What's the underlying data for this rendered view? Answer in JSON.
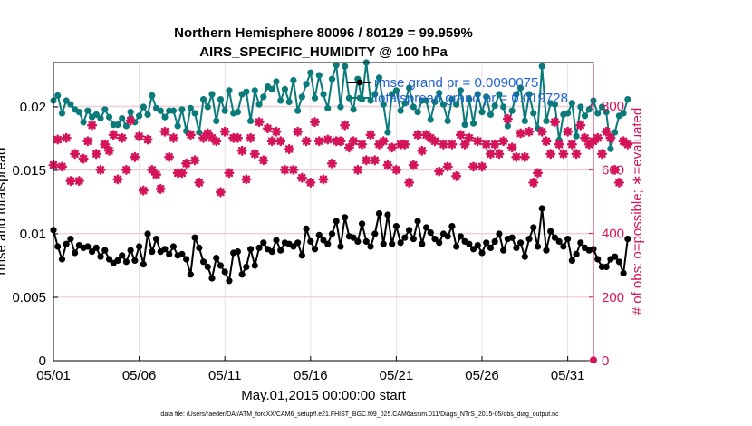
{
  "chart_data": {
    "type": "line",
    "title": "Northern Hemisphere 80096 / 80129 = 99.959%",
    "subtitle": "AIRS_SPECIFIC_HUMIDITY @ 100 hPa",
    "xlabel": "May.01,2015 00:00:00 start",
    "ylabel_left": "rmse and totalspread",
    "ylabel_right": "# of obs: o=possible; ∗=evaluated",
    "x_tick_labels": [
      "05/01",
      "05/06",
      "05/11",
      "05/16",
      "05/21",
      "05/26",
      "05/31"
    ],
    "x_tick_days": [
      0,
      5,
      10,
      15,
      20,
      25,
      30
    ],
    "xlim": [
      0,
      31.5
    ],
    "ylim_left": [
      0,
      0.0235
    ],
    "y_ticks_left": [
      0,
      0.005,
      0.01,
      0.015,
      0.02
    ],
    "y_tick_labels_left": [
      "0",
      "0.005",
      "0.01",
      "0.015",
      "0.02"
    ],
    "ylim_right": [
      0,
      937
    ],
    "y_ticks_right": [
      0,
      200,
      400,
      600,
      800
    ],
    "y_tick_labels_right": [
      "0",
      "200",
      "400",
      "600",
      "800"
    ],
    "step_days": 0.25,
    "series": [
      {
        "name": "rmse grand pr = 0.0090075",
        "color": "#000000",
        "axis": "left",
        "marker": "dot",
        "values": [
          0.0103,
          0.009,
          0.008,
          0.0092,
          0.0096,
          0.0085,
          0.0091,
          0.0089,
          0.009,
          0.0086,
          0.0089,
          0.0082,
          0.0087,
          0.008,
          0.0077,
          0.0079,
          0.0083,
          0.0078,
          0.0087,
          0.0079,
          0.009,
          0.0076,
          0.01,
          0.0086,
          0.0096,
          0.0086,
          0.0088,
          0.0084,
          0.009,
          0.0083,
          0.0084,
          0.008,
          0.0068,
          0.0097,
          0.0089,
          0.0078,
          0.0074,
          0.0065,
          0.0081,
          0.0075,
          0.007,
          0.0063,
          0.0085,
          0.0086,
          0.0068,
          0.0074,
          0.0088,
          0.0075,
          0.0089,
          0.0093,
          0.0088,
          0.0086,
          0.0095,
          0.0087,
          0.0093,
          0.0092,
          0.009,
          0.0093,
          0.0083,
          0.0104,
          0.0094,
          0.0088,
          0.0099,
          0.0095,
          0.0092,
          0.01,
          0.011,
          0.009,
          0.0113,
          0.0098,
          0.0097,
          0.0094,
          0.0108,
          0.0094,
          0.009,
          0.01,
          0.0116,
          0.0092,
          0.0115,
          0.0092,
          0.0106,
          0.0093,
          0.0097,
          0.0103,
          0.0096,
          0.011,
          0.0092,
          0.0105,
          0.0101,
          0.0096,
          0.0093,
          0.01,
          0.0098,
          0.0106,
          0.009,
          0.0098,
          0.0094,
          0.0092,
          0.0088,
          0.0091,
          0.0085,
          0.0093,
          0.0089,
          0.0094,
          0.01,
          0.0087,
          0.0096,
          0.0097,
          0.0089,
          0.0093,
          0.0082,
          0.0096,
          0.0105,
          0.009,
          0.012,
          0.0087,
          0.0102,
          0.0097,
          0.0094,
          0.009,
          0.0096,
          0.0079,
          0.0084,
          0.0093,
          0.0089,
          0.0087,
          0.0088,
          0.008,
          0.0074,
          0.0074,
          0.008,
          0.0082,
          0.0078,
          0.0069,
          0.0096
        ]
      },
      {
        "name": "totalspread grand pr = 0.019728",
        "color": "#0b7a7a",
        "axis": "left",
        "marker": "dot",
        "values": [
          0.0205,
          0.0209,
          0.0195,
          0.0205,
          0.0202,
          0.0198,
          0.0196,
          0.0188,
          0.0197,
          0.0192,
          0.0194,
          0.0191,
          0.0198,
          0.0192,
          0.0186,
          0.0186,
          0.0191,
          0.0185,
          0.0196,
          0.0188,
          0.0193,
          0.02,
          0.0194,
          0.0209,
          0.0199,
          0.0197,
          0.0192,
          0.0197,
          0.0197,
          0.0185,
          0.0198,
          0.0181,
          0.0199,
          0.0195,
          0.018,
          0.0206,
          0.02,
          0.021,
          0.0189,
          0.0206,
          0.0197,
          0.0213,
          0.0195,
          0.0196,
          0.021,
          0.0212,
          0.0189,
          0.0213,
          0.0202,
          0.0208,
          0.0216,
          0.0214,
          0.022,
          0.0205,
          0.0214,
          0.0204,
          0.0221,
          0.0197,
          0.0208,
          0.0218,
          0.0227,
          0.0207,
          0.0225,
          0.021,
          0.0199,
          0.0222,
          0.0233,
          0.02,
          0.0232,
          0.0207,
          0.0198,
          0.0222,
          0.0206,
          0.0235,
          0.0205,
          0.021,
          0.0223,
          0.0202,
          0.018,
          0.021,
          0.0213,
          0.0197,
          0.0203,
          0.0215,
          0.02,
          0.0196,
          0.0205,
          0.0205,
          0.019,
          0.0204,
          0.0211,
          0.0202,
          0.0189,
          0.0206,
          0.0202,
          0.0213,
          0.0186,
          0.0206,
          0.0187,
          0.021,
          0.0196,
          0.0208,
          0.0194,
          0.0201,
          0.021,
          0.02,
          0.0185,
          0.0197,
          0.021,
          0.0215,
          0.0189,
          0.021,
          0.0195,
          0.0183,
          0.0232,
          0.0189,
          0.0203,
          0.0202,
          0.0174,
          0.0194,
          0.0195,
          0.0203,
          0.0177,
          0.02,
          0.0193,
          0.0198,
          0.0205,
          0.0195,
          0.02,
          0.0196,
          0.0167,
          0.018,
          0.0193,
          0.0195,
          0.0206
        ]
      },
      {
        "name": "obs possible",
        "color": "#d4145a",
        "axis": "right",
        "marker": "circle",
        "values": [
          2
        ]
      },
      {
        "name": "obs evaluated",
        "color": "#d4145a",
        "axis": "right",
        "marker": "star",
        "values": [
          615,
          695,
          610,
          700,
          565,
          650,
          565,
          635,
          690,
          740,
          650,
          600,
          680,
          660,
          710,
          570,
          700,
          600,
          755,
          640,
          705,
          535,
          695,
          600,
          585,
          540,
          720,
          640,
          700,
          590,
          590,
          620,
          710,
          630,
          560,
          700,
          715,
          700,
          690,
          530,
          720,
          590,
          700,
          700,
          660,
          570,
          700,
          650,
          750,
          630,
          730,
          690,
          720,
          690,
          600,
          665,
          600,
          720,
          575,
          690,
          560,
          750,
          690,
          570,
          695,
          620,
          690,
          690,
          740,
          670,
          690,
          600,
          680,
          630,
          710,
          630,
          680,
          690,
          615,
          670,
          600,
          680,
          680,
          560,
          615,
          710,
          660,
          710,
          700,
          690,
          595,
          680,
          610,
          680,
          580,
          710,
          680,
          700,
          610,
          690,
          610,
          680,
          650,
          680,
          650,
          690,
          760,
          670,
          640,
          715,
          640,
          720,
          560,
          590,
          720,
          690,
          650,
          750,
          680,
          650,
          720,
          680,
          650,
          740,
          700,
          680,
          690,
          700,
          650,
          720,
          700,
          600,
          560,
          690,
          680
        ]
      }
    ],
    "footnote": "data file: /Users/raeder/DAI/ATM_forcXX/CAM6_setup/f.e21.FHIST_BGC.f09_025.CAM6assim.011/Diags_NTrS_2015-05/obs_diag_output.nc"
  }
}
